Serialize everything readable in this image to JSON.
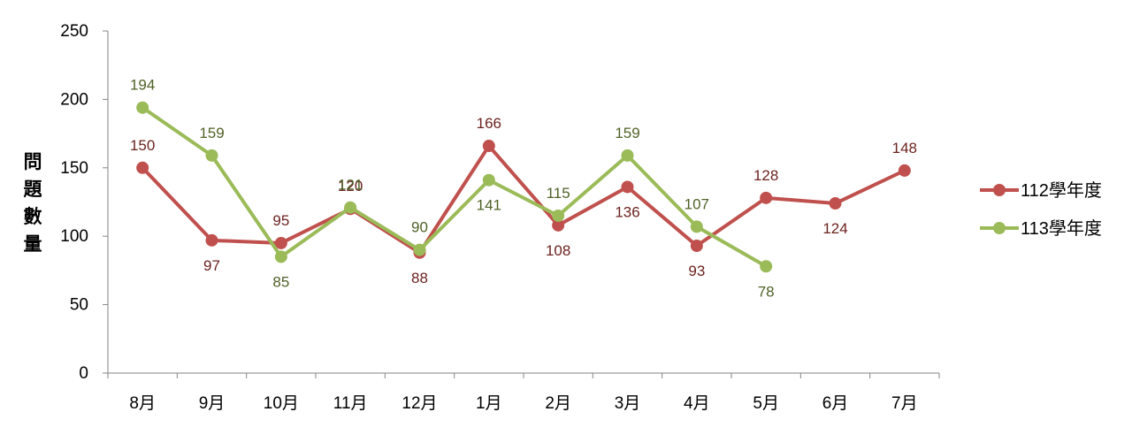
{
  "chart_data": {
    "type": "line",
    "y_label": "問題數量",
    "categories": [
      "8月",
      "9月",
      "10月",
      "11月",
      "12月",
      "1月",
      "2月",
      "3月",
      "4月",
      "5月",
      "6月",
      "7月"
    ],
    "series": [
      {
        "name": "112學年度",
        "color": "#c0504d",
        "values": [
          150,
          97,
          95,
          120,
          88,
          166,
          108,
          136,
          93,
          128,
          124,
          148
        ]
      },
      {
        "name": "113學年度",
        "color": "#9bbb59",
        "values": [
          194,
          159,
          85,
          121,
          90,
          141,
          115,
          159,
          107,
          78,
          null,
          null
        ]
      }
    ],
    "ylim": [
      0,
      250
    ],
    "yticks": [
      0,
      50,
      100,
      150,
      200,
      250
    ],
    "grid": false
  }
}
